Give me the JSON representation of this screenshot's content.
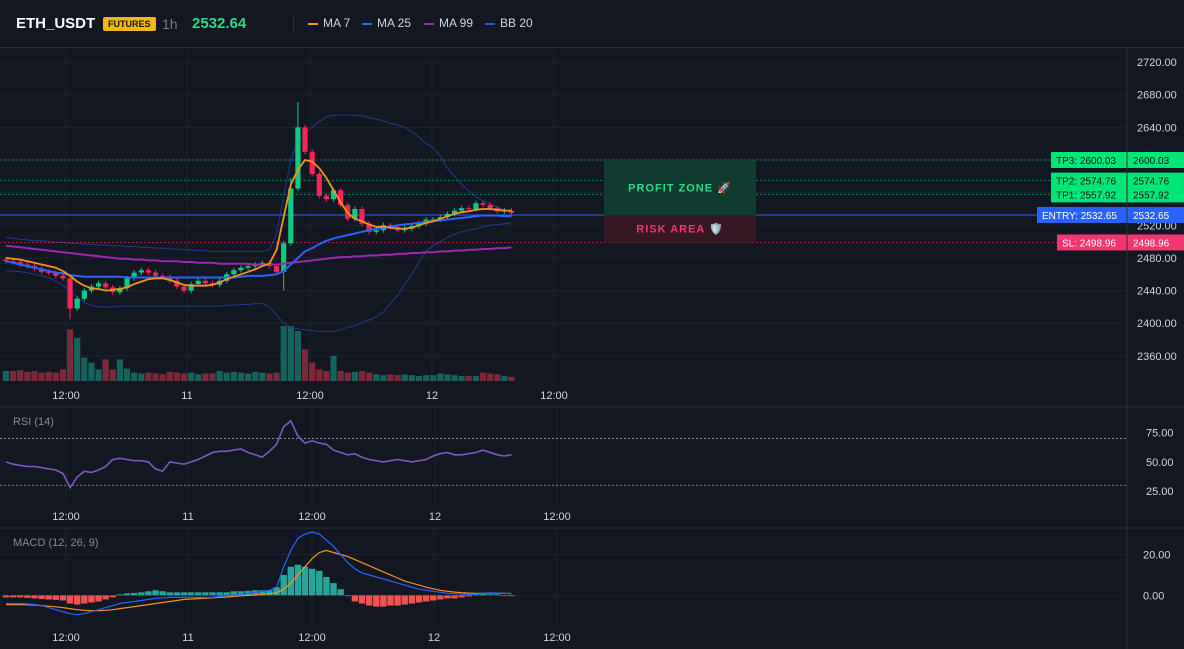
{
  "header": {
    "symbol": "ETH_USDT",
    "badge": "FUTURES",
    "timeframe": "1h",
    "price": "2532.64",
    "legend": [
      {
        "name": "MA 7",
        "color": "#f7931a"
      },
      {
        "name": "MA 25",
        "color": "#2962ff"
      },
      {
        "name": "MA 99",
        "color": "#9c27b0"
      },
      {
        "name": "BB 20",
        "color": "#1e53e5"
      }
    ]
  },
  "chart_data": [
    {
      "type": "candlestick",
      "x_tick_labels": [
        "12:00",
        "11",
        "12:00",
        "12",
        "12:00"
      ],
      "y_ticks": [
        "2360.00",
        "2400.00",
        "2440.00",
        "2480.00",
        "2520.00",
        "2560.00",
        "2600.00",
        "2640.00",
        "2680.00",
        "2720.00"
      ],
      "ylim": [
        2328,
        2736
      ],
      "closes": [
        2476,
        2475,
        2472,
        2470,
        2467,
        2463,
        2462,
        2458,
        2455,
        2418,
        2430,
        2440,
        2445,
        2449,
        2444,
        2438,
        2443,
        2455,
        2462,
        2465,
        2462,
        2458,
        2457,
        2452,
        2445,
        2440,
        2448,
        2452,
        2449,
        2447,
        2452,
        2460,
        2465,
        2468,
        2470,
        2472,
        2474,
        2470,
        2463,
        2498,
        2565,
        2640,
        2610,
        2583,
        2556,
        2552,
        2563,
        2545,
        2528,
        2540,
        2522,
        2512,
        2514,
        2520,
        2518,
        2514,
        2516,
        2519,
        2522,
        2527,
        2527,
        2530,
        2534,
        2538,
        2541,
        2540,
        2547,
        2545,
        2541,
        2537,
        2538,
        2535
      ],
      "volumes": [
        12,
        12,
        13,
        11,
        12,
        10,
        11,
        10,
        14,
        62,
        52,
        28,
        22,
        14,
        26,
        14,
        26,
        15,
        10,
        9,
        10,
        9,
        8,
        11,
        10,
        9,
        10,
        8,
        9,
        9,
        12,
        10,
        11,
        10,
        9,
        11,
        10,
        9,
        10,
        66,
        66,
        60,
        38,
        22,
        14,
        12,
        30,
        12,
        10,
        11,
        12,
        10,
        8,
        7,
        8,
        7,
        8,
        7,
        6,
        7,
        7,
        9,
        8,
        7,
        6,
        6,
        6,
        10,
        9,
        8,
        6,
        5
      ],
      "ma7": [
        2480,
        2479,
        2478,
        2476,
        2474,
        2472,
        2470,
        2468,
        2464,
        2458,
        2451,
        2446,
        2443,
        2442,
        2440,
        2441,
        2442,
        2444,
        2448,
        2451,
        2454,
        2455,
        2455,
        2453,
        2450,
        2447,
        2446,
        2446,
        2446,
        2447,
        2450,
        2454,
        2457,
        2460,
        2463,
        2466,
        2470,
        2473,
        2490,
        2530,
        2570,
        2588,
        2600,
        2598,
        2590,
        2578,
        2563,
        2548,
        2535,
        2528,
        2525,
        2521,
        2518,
        2518,
        2517,
        2516,
        2516,
        2517,
        2520,
        2523,
        2525,
        2528,
        2531,
        2534,
        2536,
        2537,
        2539,
        2540,
        2540,
        2539,
        2538,
        2538
      ],
      "ma25": [
        2476,
        2474,
        2472,
        2470,
        2468,
        2466,
        2464,
        2462,
        2461,
        2459,
        2458,
        2457,
        2457,
        2457,
        2457,
        2457,
        2457,
        2456,
        2456,
        2456,
        2456,
        2456,
        2456,
        2456,
        2456,
        2456,
        2456,
        2456,
        2456,
        2456,
        2456,
        2456,
        2456,
        2457,
        2458,
        2458,
        2458,
        2459,
        2460,
        2464,
        2472,
        2480,
        2488,
        2492,
        2497,
        2501,
        2504,
        2506,
        2508,
        2510,
        2512,
        2514,
        2516,
        2517,
        2518,
        2520,
        2521,
        2522,
        2523,
        2524,
        2525,
        2526,
        2527,
        2528,
        2529,
        2530,
        2531,
        2532,
        2532,
        2532,
        2531,
        2531
      ],
      "ma99": [
        2495,
        2494,
        2493,
        2492,
        2491,
        2490,
        2489,
        2488,
        2487,
        2486,
        2485,
        2484,
        2483,
        2482,
        2481,
        2480,
        2479,
        2479,
        2478,
        2478,
        2477,
        2477,
        2476,
        2476,
        2476,
        2475,
        2475,
        2474,
        2474,
        2474,
        2473,
        2473,
        2473,
        2473,
        2473,
        2472,
        2472,
        2472,
        2472,
        2473,
        2474,
        2475,
        2476,
        2477,
        2478,
        2479,
        2480,
        2481,
        2481,
        2482,
        2482,
        2483,
        2483,
        2484,
        2484,
        2485,
        2485,
        2486,
        2486,
        2487,
        2487,
        2488,
        2488,
        2489,
        2489,
        2490,
        2490,
        2491,
        2491,
        2492,
        2492,
        2493
      ],
      "bb_upper": [
        2505,
        2504,
        2503,
        2502,
        2501,
        2501,
        2500,
        2499,
        2499,
        2498,
        2498,
        2497,
        2497,
        2496,
        2496,
        2495,
        2495,
        2494,
        2494,
        2493,
        2493,
        2492,
        2492,
        2491,
        2491,
        2490,
        2490,
        2489,
        2489,
        2488,
        2488,
        2488,
        2488,
        2488,
        2488,
        2488,
        2488,
        2490,
        2510,
        2555,
        2600,
        2625,
        2633,
        2640,
        2647,
        2653,
        2655,
        2655,
        2655,
        2655,
        2654,
        2652,
        2650,
        2648,
        2645,
        2643,
        2640,
        2635,
        2628,
        2620,
        2615,
        2605,
        2590,
        2580,
        2570,
        2562,
        2555,
        2550,
        2546,
        2542,
        2539,
        2537
      ],
      "bb_lower": [
        2464,
        2464,
        2463,
        2462,
        2460,
        2458,
        2456,
        2452,
        2446,
        2440,
        2432,
        2425,
        2422,
        2420,
        2420,
        2420,
        2421,
        2421,
        2421,
        2421,
        2421,
        2421,
        2421,
        2421,
        2421,
        2421,
        2421,
        2421,
        2421,
        2421,
        2421,
        2422,
        2422,
        2423,
        2423,
        2424,
        2424,
        2420,
        2410,
        2400,
        2395,
        2393,
        2392,
        2391,
        2390,
        2390,
        2390,
        2392,
        2395,
        2397,
        2401,
        2404,
        2408,
        2414,
        2424,
        2434,
        2448,
        2460,
        2475,
        2488,
        2495,
        2500,
        2505,
        2509,
        2512,
        2514,
        2516,
        2518,
        2520,
        2521,
        2522,
        2523
      ],
      "levels": [
        {
          "label": "TP3",
          "value": 2600.03,
          "display": "2600.03",
          "color": "#00e676"
        },
        {
          "label": "TP2",
          "value": 2574.76,
          "display": "2574.76",
          "color": "#00e676"
        },
        {
          "label": "TP1",
          "value": 2557.92,
          "display": "2557.92",
          "color": "#00e676"
        },
        {
          "label": "ENTRY",
          "value": 2532.65,
          "display": "2532.65",
          "color": "#2962ff"
        },
        {
          "label": "SL",
          "value": 2498.96,
          "display": "2498.96",
          "color": "#f23645"
        }
      ],
      "zones": {
        "profit_label": "PROFIT ZONE 🚀",
        "risk_label": "RISK AREA 🛡️"
      }
    },
    {
      "type": "line",
      "title": "RSI (14)",
      "y_ticks": [
        "25.00",
        "50.00",
        "75.00"
      ],
      "ylim": [
        14,
        96
      ],
      "bands": [
        30,
        70
      ],
      "values": [
        50,
        48,
        47,
        46,
        46,
        45,
        44,
        43,
        40,
        28,
        37,
        42,
        41,
        43,
        46,
        52,
        53,
        52,
        51,
        51,
        50,
        44,
        42,
        50,
        49,
        48,
        50,
        52,
        55,
        58,
        59,
        59,
        60,
        61,
        58,
        56,
        54,
        59,
        65,
        80,
        85,
        72,
        66,
        68,
        66,
        65,
        60,
        58,
        56,
        57,
        54,
        52,
        51,
        50,
        51,
        52,
        51,
        50,
        51,
        52,
        55,
        57,
        58,
        56,
        56,
        57,
        58,
        60,
        58,
        56,
        55,
        56
      ]
    },
    {
      "type": "bar+line",
      "title": "MACD (12, 26, 9)",
      "y_ticks": [
        "0.00",
        "20.00"
      ],
      "ylim": [
        -15,
        32
      ],
      "histogram": [
        -1,
        -1,
        -1,
        -1.2,
        -1.5,
        -1.8,
        -2,
        -2.2,
        -2.5,
        -4,
        -4.5,
        -4,
        -3.5,
        -3,
        -2,
        -1,
        0.5,
        1,
        1.2,
        1.5,
        2,
        2.5,
        2,
        1.5,
        1.5,
        1.5,
        1.5,
        1.5,
        1.5,
        1.5,
        1.5,
        1.5,
        2,
        2,
        2.2,
        2.5,
        2.5,
        2.5,
        4,
        10,
        14,
        15,
        14,
        13,
        12,
        9,
        6,
        3,
        0,
        -3,
        -4,
        -5,
        -5.5,
        -5.5,
        -5,
        -5,
        -4.5,
        -4,
        -3.5,
        -3,
        -2.5,
        -2,
        -1.5,
        -1.5,
        -1,
        -0.5,
        0.5,
        0.8,
        0.5,
        0.5,
        -0.3,
        -0.4
      ],
      "macd": [
        -4,
        -4,
        -4,
        -4.2,
        -4.5,
        -5,
        -6,
        -7,
        -8,
        -9,
        -9.5,
        -9,
        -8,
        -7,
        -6,
        -5,
        -4,
        -3.5,
        -3,
        -2.5,
        -2,
        -1.5,
        -1.2,
        -1,
        -1,
        -1,
        -1,
        -1,
        -1,
        -1,
        -0.5,
        0,
        0,
        0.5,
        1,
        1.5,
        2,
        2.5,
        4,
        14,
        22,
        28,
        30,
        31,
        30,
        27,
        24,
        20,
        16,
        13,
        11,
        10,
        9,
        8,
        7,
        6,
        5,
        4,
        3,
        2.5,
        2,
        1.5,
        1,
        0.8,
        0.6,
        0.5,
        0.5,
        1,
        1.2,
        1.1,
        1,
        0.8
      ],
      "signal": [
        -4.5,
        -4.5,
        -4.5,
        -4.6,
        -4.8,
        -5,
        -5.3,
        -5.6,
        -6,
        -6.5,
        -7,
        -7.3,
        -7.5,
        -7.5,
        -7.3,
        -7,
        -6.5,
        -6,
        -5.5,
        -5,
        -4.5,
        -4,
        -3.5,
        -3,
        -2.5,
        -2,
        -1.8,
        -1.6,
        -1.4,
        -1.2,
        -1,
        -0.8,
        -0.5,
        -0.2,
        0,
        0.2,
        0.5,
        0.8,
        1.2,
        3,
        6,
        10,
        14,
        18,
        21,
        22,
        21,
        20,
        19,
        17.5,
        16,
        14.5,
        13,
        11.5,
        10,
        8.5,
        7,
        6,
        5,
        4,
        3.2,
        2.5,
        2,
        1.6,
        1.3,
        1.1,
        1,
        1,
        1,
        1,
        1,
        0.9
      ]
    }
  ]
}
